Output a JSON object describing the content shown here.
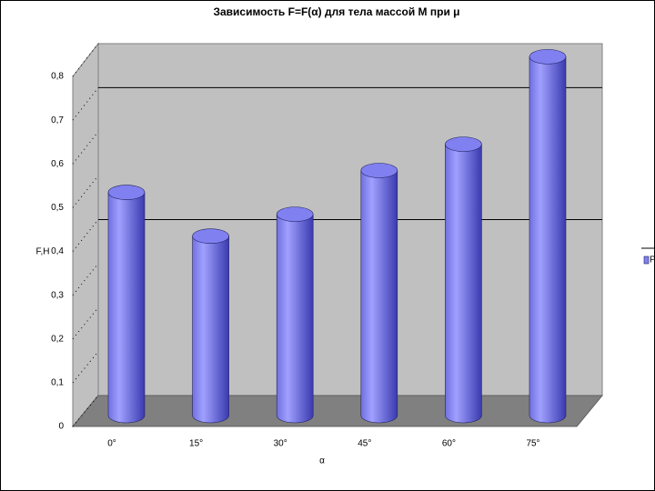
{
  "chart_data": {
    "type": "bar",
    "title": "Зависимость F=F(α) для тела массой M при μ",
    "categories": [
      "0°",
      "15°",
      "30°",
      "45°",
      "60°",
      "75°"
    ],
    "series": [
      {
        "name": "P",
        "color": "#8080f0",
        "values": [
          0.51,
          0.41,
          0.46,
          0.56,
          0.62,
          0.82
        ]
      }
    ],
    "x_label": "α",
    "y_label": "F,H",
    "ylim": [
      0,
      0.8
    ],
    "yticks": [
      0,
      {
        "value": 0.1,
        "label": "0,1"
      },
      {
        "value": 0.2,
        "label": "0,2"
      },
      {
        "value": 0.3,
        "label": "0,3"
      },
      {
        "value": 0.4,
        "label": "0,4"
      },
      {
        "value": 0.5,
        "label": "0,5"
      },
      {
        "value": 0.6,
        "label": "0,6"
      },
      {
        "value": 0.7,
        "label": "0,7"
      },
      {
        "value": 0.8,
        "label": "0,8"
      }
    ],
    "grid_values": [
      0.4,
      0.7
    ],
    "legend": "right"
  }
}
